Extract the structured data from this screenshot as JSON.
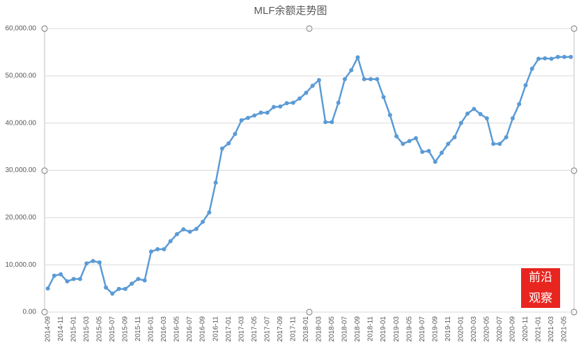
{
  "chart_data": {
    "type": "line",
    "title": "MLF余额走势图",
    "categories": [
      "2014-09",
      null,
      "2014-11",
      null,
      "2015-01",
      null,
      "2015-03",
      null,
      "2015-05",
      null,
      "2015-07",
      null,
      "2015-09",
      null,
      "2015-11",
      null,
      "2016-01",
      null,
      "2016-03",
      null,
      "2016-05",
      null,
      "2016-07",
      null,
      "2016-09",
      null,
      "2016-11",
      null,
      "2017-01",
      null,
      "2017-03",
      null,
      "2017-05",
      null,
      "2017-07",
      null,
      "2017-09",
      null,
      "2017-11",
      null,
      "2018-01",
      null,
      "2018-03",
      null,
      "2018-05",
      null,
      "2018-07",
      null,
      "2018-09",
      null,
      "2018-11",
      null,
      "2019-01",
      null,
      "2019-03",
      null,
      "2019-05",
      null,
      "2019-07",
      null,
      "2019-09",
      null,
      "2019-11",
      null,
      "2020-01",
      null,
      "2020-03",
      null,
      "2020-05",
      null,
      "2020-07",
      null,
      "2020-09",
      null,
      "2020-11",
      null,
      "2021-01",
      null,
      "2021-03",
      null,
      "2021-05",
      null
    ],
    "series": [
      {
        "color": "#5b9bd5",
        "values": [
          5000,
          7700,
          8000,
          6500,
          7000,
          7000,
          10300,
          10800,
          10500,
          5200,
          3900,
          4900,
          4900,
          6000,
          7000,
          6700,
          12800,
          13300,
          13300,
          15000,
          16500,
          17500,
          17000,
          17600,
          19100,
          21100,
          27400,
          34600,
          35700,
          37700,
          40600,
          41100,
          41600,
          42200,
          42200,
          43400,
          43500,
          44200,
          44300,
          45200,
          46400,
          47900,
          49100,
          40200,
          40200,
          44300,
          49300,
          51200,
          53900,
          49300,
          49300,
          49300,
          45500,
          41700,
          37200,
          35600,
          36200,
          36800,
          33900,
          34100,
          31800,
          33700,
          35600,
          37000,
          40000,
          42000,
          43000,
          41900,
          41000,
          35600,
          35600,
          37000,
          41000,
          44000,
          48000,
          51500,
          53600,
          53700,
          53600,
          54000,
          54000,
          54000
        ]
      }
    ],
    "ylim": [
      0,
      60000
    ],
    "yticks": [
      {
        "value": 0,
        "label": "0.00"
      },
      {
        "value": 10000,
        "label": "10,000.00"
      },
      {
        "value": 20000,
        "label": "20,000.00"
      },
      {
        "value": 30000,
        "label": "30,000.00"
      },
      {
        "value": 40000,
        "label": "40,000.00"
      },
      {
        "value": 50000,
        "label": "50,000.00"
      },
      {
        "value": 60000,
        "label": "60,000.00"
      }
    ],
    "grid": true,
    "watermark": [
      "前沿",
      "观察"
    ]
  }
}
